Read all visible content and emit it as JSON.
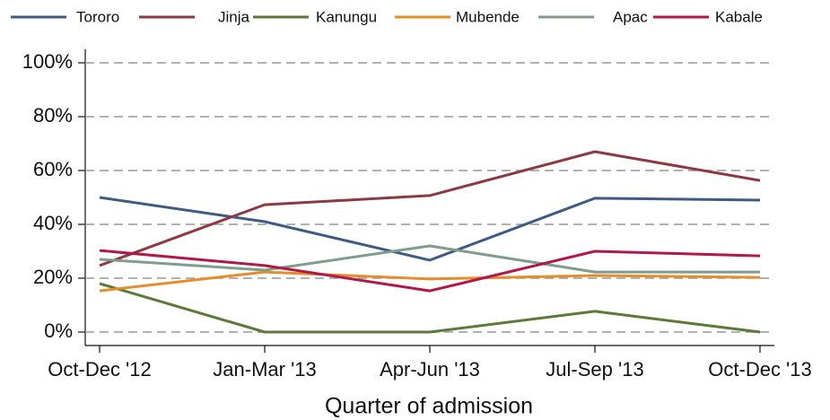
{
  "chart_data": {
    "type": "line",
    "x_label": "Quarter of admission",
    "categories": [
      "Oct-Dec '12",
      "Jan-Mar '13",
      "Apr-Jun '13",
      "Jul-Sep '13",
      "Oct-Dec '13"
    ],
    "series": [
      {
        "name": "Tororo",
        "color": "#3e5b84",
        "values": [
          50,
          41,
          26.7,
          49.7,
          49
        ]
      },
      {
        "name": "Jinja",
        "color": "#8b3a42",
        "values": [
          24.7,
          47.3,
          50.7,
          67,
          56.3
        ]
      },
      {
        "name": "Kanungu",
        "color": "#5b7a3a",
        "values": [
          18,
          0,
          0,
          7.7,
          0
        ]
      },
      {
        "name": "Mubende",
        "color": "#e38d2c",
        "values": [
          15.3,
          22.3,
          19.7,
          21,
          20.3
        ]
      },
      {
        "name": "Apac",
        "color": "#7f9c8c",
        "values": [
          27,
          23,
          32,
          22.3,
          22.3
        ]
      },
      {
        "name": "Kabale",
        "color": "#b0184a",
        "values": [
          30.3,
          24.7,
          15.3,
          30,
          28.3
        ]
      }
    ],
    "ylim": [
      -5,
      105
    ],
    "yticks": [
      {
        "value": 0,
        "label": "0%"
      },
      {
        "value": 20,
        "label": "20%"
      },
      {
        "value": 40,
        "label": "40%"
      },
      {
        "value": 60,
        "label": "60%"
      },
      {
        "value": 80,
        "label": "80%"
      },
      {
        "value": 100,
        "label": "100%"
      }
    ],
    "grid": true
  }
}
